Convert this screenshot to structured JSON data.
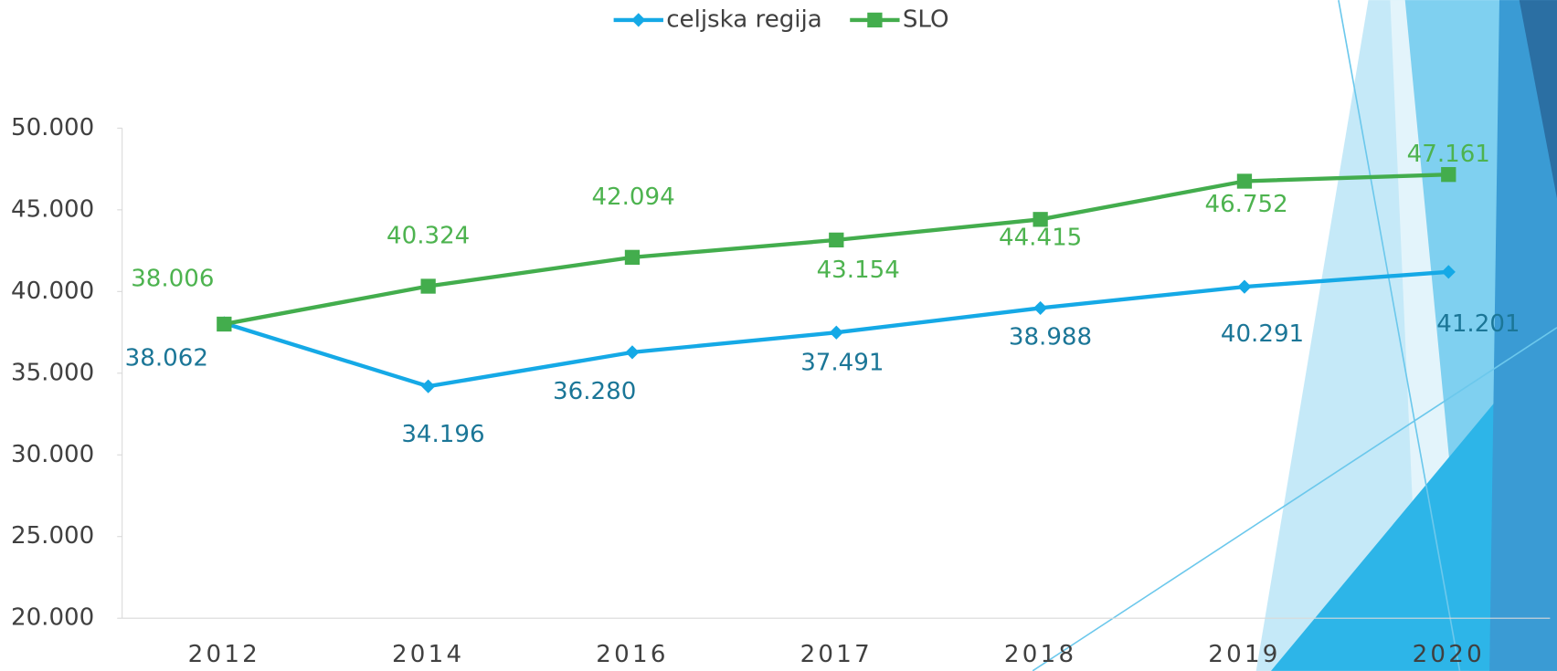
{
  "chart_data": {
    "type": "line",
    "categories": [
      "2012",
      "2014",
      "2016",
      "2017",
      "2018",
      "2019",
      "2020"
    ],
    "series": [
      {
        "name": "celjska regija",
        "color": "#15a9e6",
        "label_color": "#1b7697",
        "values": [
          38062,
          34196,
          36280,
          37491,
          38988,
          40291,
          41201
        ],
        "value_labels": [
          "38.062",
          "34.196",
          "36.280",
          "37.491",
          "38.988",
          "40.291",
          "41.201"
        ]
      },
      {
        "name": "SLO",
        "color": "#43ad4d",
        "label_color": "#4db34f",
        "values": [
          38006,
          40324,
          42094,
          43154,
          44415,
          46752,
          47161
        ],
        "value_labels": [
          "38.006",
          "40.324",
          "42.094",
          "43.154",
          "44.415",
          "46.752",
          "47.161"
        ]
      }
    ],
    "ylim": [
      20000,
      50000
    ],
    "yticks": [
      {
        "value": 20000,
        "label": "20.000"
      },
      {
        "value": 25000,
        "label": "25.000"
      },
      {
        "value": 30000,
        "label": "30.000"
      },
      {
        "value": 35000,
        "label": "35.000"
      },
      {
        "value": 40000,
        "label": "40.000"
      },
      {
        "value": 45000,
        "label": "45.000"
      },
      {
        "value": 50000,
        "label": "50.000"
      }
    ],
    "legend": "top",
    "grid": false
  }
}
